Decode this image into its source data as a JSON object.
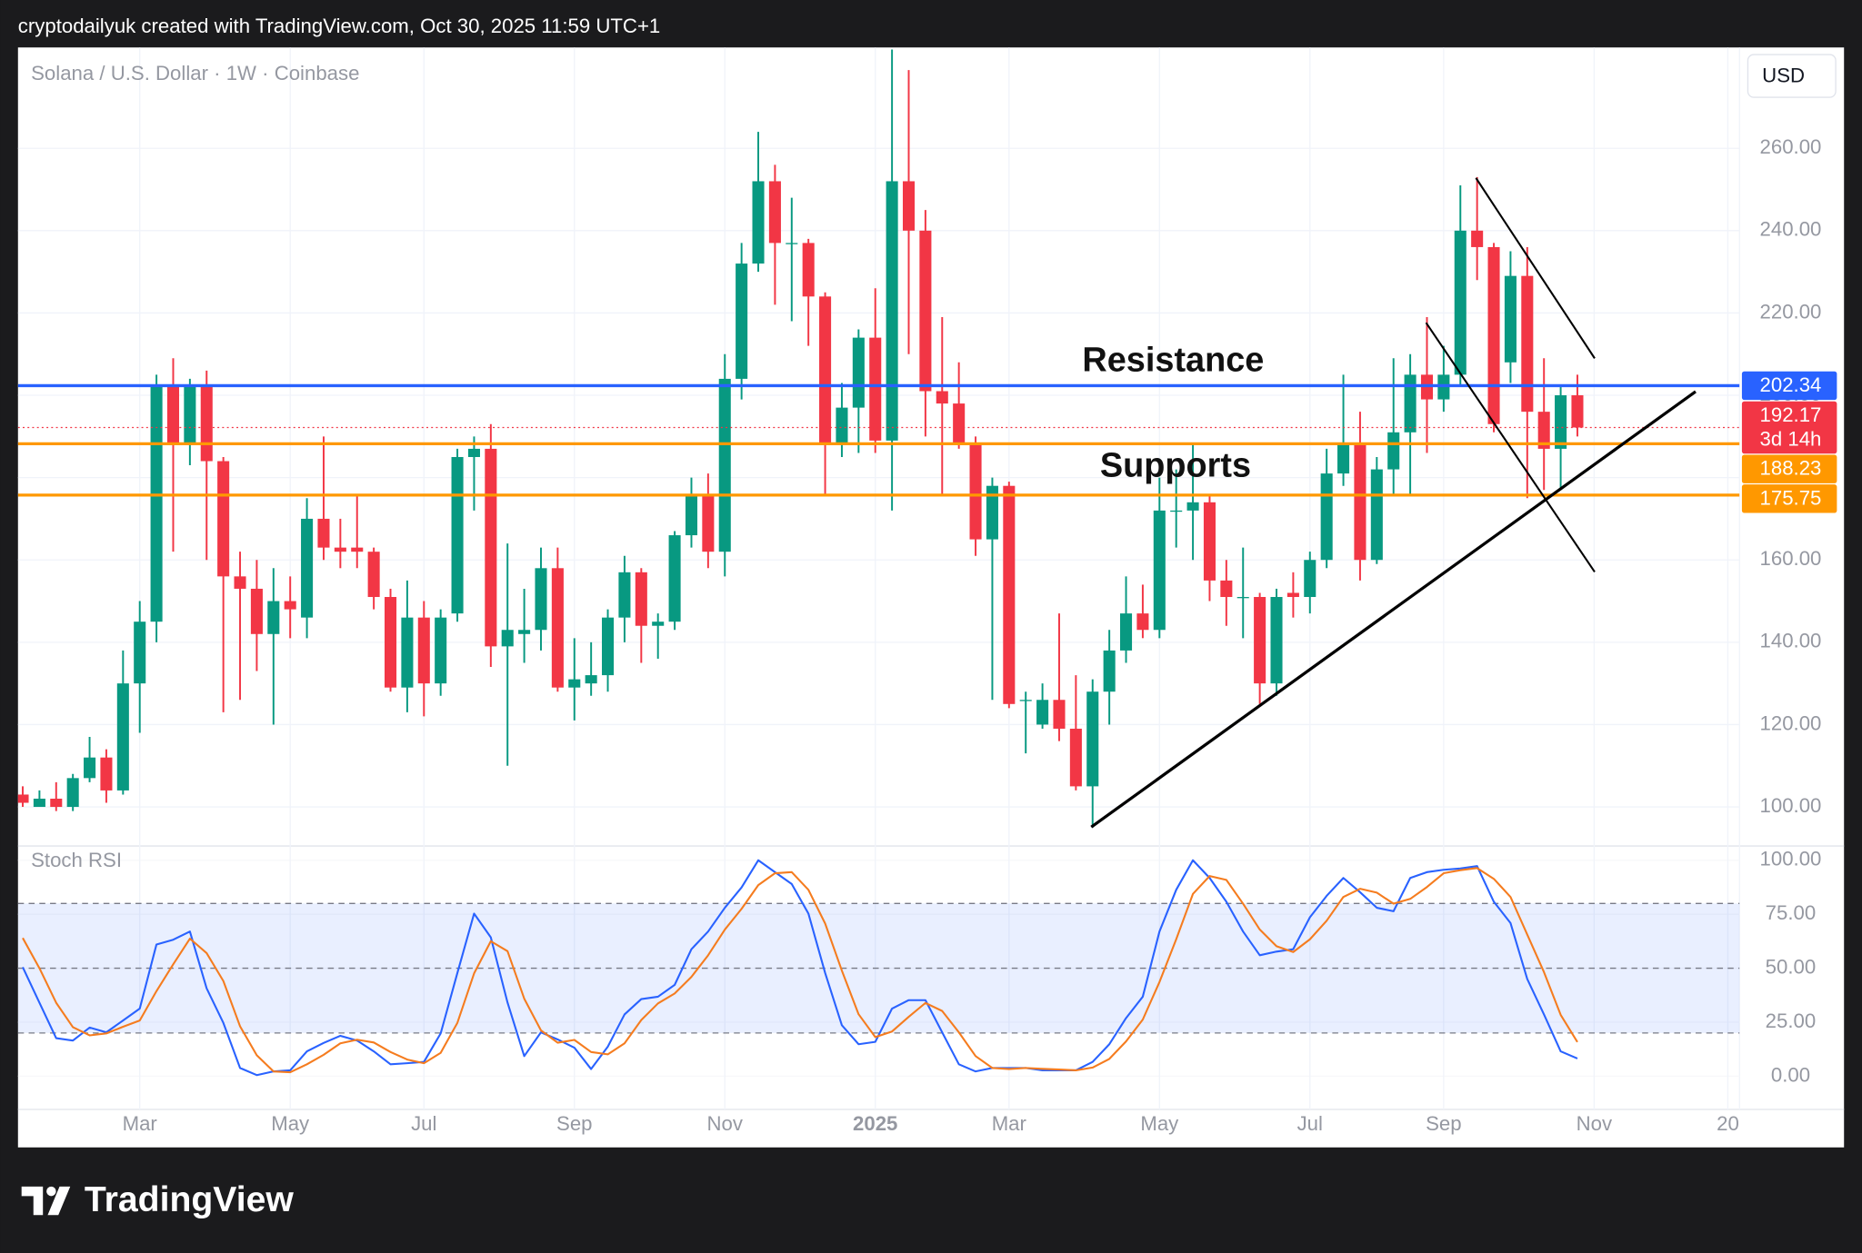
{
  "header": {
    "text": "cryptodailyuk created with TradingView.com, Oct 30, 2025 11:59 UTC+1"
  },
  "footer": {
    "logo": "TradingView"
  },
  "chart_data": {
    "type": "candlestick",
    "title": "Solana / U.S. Dollar · 1W · Coinbase",
    "currency": "USD",
    "up_color": "#089981",
    "down_color": "#f23645",
    "grid": true,
    "categories": [
      null,
      null,
      null,
      null,
      null,
      null,
      null,
      "Mar",
      null,
      null,
      null,
      null,
      null,
      null,
      null,
      null,
      "May",
      null,
      null,
      null,
      null,
      null,
      null,
      null,
      "Jul",
      null,
      null,
      null,
      null,
      null,
      null,
      null,
      null,
      "Sep",
      null,
      null,
      null,
      null,
      null,
      null,
      null,
      null,
      "Nov",
      null,
      null,
      null,
      null,
      null,
      null,
      null,
      null,
      "2025",
      null,
      null,
      null,
      null,
      null,
      null,
      null,
      "Mar",
      null,
      null,
      null,
      null,
      null,
      null,
      null,
      null,
      "May",
      null,
      null,
      null,
      null,
      null,
      null,
      null,
      null,
      "Jul",
      null,
      null,
      null,
      null,
      null,
      null,
      null,
      "Sep",
      null,
      null,
      null,
      null,
      null,
      null,
      null,
      null,
      "Nov",
      null,
      null,
      null,
      null,
      null,
      null,
      null,
      "20"
    ],
    "open": [
      103,
      100,
      102,
      100,
      107,
      112,
      104,
      130,
      145,
      202,
      188,
      202,
      184,
      156,
      153,
      142,
      150,
      146,
      170,
      163,
      163,
      162,
      151,
      129,
      146,
      130,
      147,
      185,
      187,
      139,
      142,
      143,
      158,
      129,
      130,
      132,
      146,
      157,
      144,
      145,
      166,
      176,
      162,
      204,
      232,
      252,
      237,
      237,
      224,
      188,
      197,
      214,
      189,
      252,
      240,
      201,
      198,
      188,
      165,
      178,
      126,
      120,
      126,
      119,
      105,
      128,
      138,
      147,
      143,
      172,
      172,
      174,
      155,
      151,
      151,
      130,
      152,
      151,
      160,
      181,
      188,
      160,
      182,
      191,
      205,
      199,
      205,
      240,
      236,
      208,
      229,
      196,
      187,
      200,
      null,
      null,
      null,
      null,
      null,
      null,
      null,
      null,
      null
    ],
    "high": [
      105,
      104,
      106,
      108,
      117,
      114,
      138,
      150,
      205,
      209,
      204,
      206,
      185,
      162,
      160,
      158,
      156,
      175,
      190,
      170,
      176,
      163,
      153,
      155,
      150,
      148,
      187,
      190,
      193,
      164,
      153,
      163,
      163,
      141,
      140,
      148,
      161,
      158,
      147,
      167,
      180,
      181,
      210,
      237,
      264,
      256,
      248,
      238,
      225,
      203,
      216,
      226,
      284,
      279,
      245,
      219,
      208,
      190,
      180,
      179,
      128,
      130,
      147,
      132,
      131,
      143,
      156,
      154,
      180,
      182,
      188,
      176,
      160,
      163,
      152,
      153,
      157,
      162,
      187,
      205,
      196,
      185,
      209,
      210,
      219,
      212,
      251,
      253,
      237,
      235,
      236,
      209,
      202,
      205,
      null,
      null,
      null,
      null,
      null,
      null,
      null,
      null,
      null
    ],
    "low": [
      100,
      100,
      99,
      99,
      106,
      101,
      103,
      118,
      140,
      162,
      183,
      160,
      123,
      126,
      133,
      120,
      141,
      141,
      160,
      158,
      158,
      148,
      128,
      123,
      122,
      127,
      145,
      172,
      134,
      110,
      135,
      138,
      128,
      121,
      127,
      128,
      140,
      135,
      136,
      143,
      163,
      158,
      156,
      199,
      230,
      222,
      218,
      212,
      176,
      185,
      186,
      186,
      172,
      210,
      190,
      176,
      187,
      161,
      126,
      124,
      113,
      119,
      116,
      104,
      95,
      120,
      135,
      141,
      141,
      163,
      160,
      150,
      144,
      141,
      125,
      127,
      146,
      147,
      158,
      178,
      155,
      159,
      176,
      176,
      186,
      196,
      202,
      228,
      191,
      203,
      175,
      177,
      177,
      190,
      null,
      null,
      null,
      null,
      null,
      null,
      null,
      null,
      null
    ],
    "close": [
      101,
      102,
      100,
      107,
      112,
      104,
      130,
      145,
      202,
      188,
      202,
      184,
      156,
      153,
      142,
      150,
      148,
      170,
      163,
      162,
      162,
      151,
      129,
      146,
      130,
      146,
      185,
      187,
      139,
      143,
      143,
      158,
      129,
      131,
      132,
      146,
      157,
      144,
      145,
      166,
      176,
      162,
      204,
      232,
      252,
      237,
      237,
      224,
      188,
      197,
      214,
      189,
      252,
      240,
      201,
      198,
      188,
      165,
      178,
      125,
      126,
      126,
      119,
      105,
      128,
      138,
      147,
      143,
      172,
      172,
      174,
      155,
      151,
      151,
      130,
      151,
      151,
      160,
      181,
      188,
      160,
      182,
      191,
      205,
      199,
      205,
      240,
      236,
      193,
      229,
      196,
      187,
      200,
      192.17,
      null,
      null,
      null,
      null,
      null,
      null,
      null,
      null,
      null
    ],
    "ylim": [
      90.5,
      284.5
    ],
    "yticks": [
      {
        "value": 100,
        "label": "100.00"
      },
      {
        "value": 120,
        "label": "120.00"
      },
      {
        "value": 140,
        "label": "140.00"
      },
      {
        "value": 160,
        "label": "160.00"
      },
      {
        "value": 180,
        "label": "180.00"
      },
      {
        "value": 200,
        "label": "200.00"
      },
      {
        "value": 220,
        "label": "220.00"
      },
      {
        "value": 240,
        "label": "240.00"
      },
      {
        "value": 260,
        "label": "260.00"
      }
    ],
    "price_lines": [
      {
        "value": 202.34,
        "color": "#2962ff",
        "style": "solid"
      },
      {
        "value": 192.17,
        "color": "#f23645",
        "style": "dotted",
        "countdown": "3d 14h"
      },
      {
        "value": 188.23,
        "color": "#ff9800",
        "style": "solid"
      },
      {
        "value": 175.75,
        "color": "#ff9800",
        "style": "solid"
      }
    ],
    "annotations": [
      "Resistance",
      "Supports"
    ],
    "indicator": {
      "type": "line",
      "title": "Stoch RSI",
      "ylim": [
        -15.4,
        106.6
      ],
      "yticks": [
        {
          "value": 0,
          "label": "0.00"
        },
        {
          "value": 25,
          "label": "25.00"
        },
        {
          "value": 50,
          "label": "50.00"
        },
        {
          "value": 75,
          "label": "75.00"
        },
        {
          "value": 100,
          "label": "100.00"
        }
      ],
      "bands": {
        "upper": 80,
        "middle": 50,
        "lower": 20
      },
      "series": [
        {
          "color": "#2962ff",
          "values": [
            50.5,
            34,
            17.6,
            16.5,
            22.5,
            20.3,
            25.8,
            31.3,
            61,
            63.2,
            67,
            40.7,
            24.7,
            3.8,
            0.5,
            2.2,
            2.7,
            11.5,
            15.4,
            18.7,
            16.5,
            11.5,
            5.5,
            6,
            6.6,
            19.8,
            47.8,
            75.3,
            64.3,
            34.1,
            9.3,
            20.3,
            17,
            13.2,
            3.3,
            13.7,
            28.6,
            35.7,
            36.8,
            42.3,
            58.8,
            67,
            78,
            87.4,
            100,
            94.5,
            89,
            75.3,
            47.8,
            23.6,
            14.8,
            15.9,
            31.3,
            35.2,
            35.2,
            20.3,
            5.5,
            2.2,
            3.8,
            3.8,
            3.8,
            2.7,
            2.7,
            2.7,
            6.6,
            14.8,
            26.9,
            36.8,
            67,
            86.3,
            100,
            91.8,
            80.8,
            67,
            56,
            57.7,
            58.8,
            73.6,
            83.5,
            91.8,
            85.2,
            78,
            76.4,
            91.8,
            94.5,
            95.6,
            96.2,
            97.3,
            80.8,
            70.9,
            45,
            28.6,
            11.5,
            8.2,
            null,
            null,
            null,
            null,
            null,
            null,
            null,
            null,
            null
          ]
        },
        {
          "color": "#f57c1f",
          "values": [
            64,
            50,
            34,
            22.7,
            18.9,
            19.8,
            22.9,
            25.8,
            39.4,
            51.8,
            63.7,
            57,
            44.1,
            23.1,
            9.7,
            2.2,
            1.8,
            5.5,
            9.9,
            15.2,
            16.9,
            15.6,
            11.2,
            7.7,
            6,
            10.8,
            24.7,
            47.6,
            62.5,
            57.9,
            35.9,
            21.2,
            15.5,
            16.8,
            11.2,
            10.1,
            15.2,
            26,
            33.7,
            38.3,
            46,
            56,
            67.9,
            77.5,
            88.5,
            94,
            94.5,
            86.3,
            70.7,
            48.9,
            28.7,
            18.1,
            20.7,
            27.5,
            33.9,
            30.2,
            20.3,
            9.3,
            3.8,
            3.3,
            3.8,
            3.4,
            3.1,
            2.7,
            4,
            8,
            16.1,
            26.2,
            43.6,
            63.4,
            84.4,
            92.7,
            90.9,
            79.9,
            67.9,
            60.2,
            57.5,
            63.4,
            72,
            83,
            86.8,
            85,
            79.9,
            82.1,
            87.6,
            94,
            95.4,
            96.4,
            91.4,
            83,
            65.6,
            48.2,
            28.4,
            15.8,
            null,
            null,
            null,
            null,
            null,
            null,
            null,
            null,
            null
          ]
        }
      ]
    }
  }
}
